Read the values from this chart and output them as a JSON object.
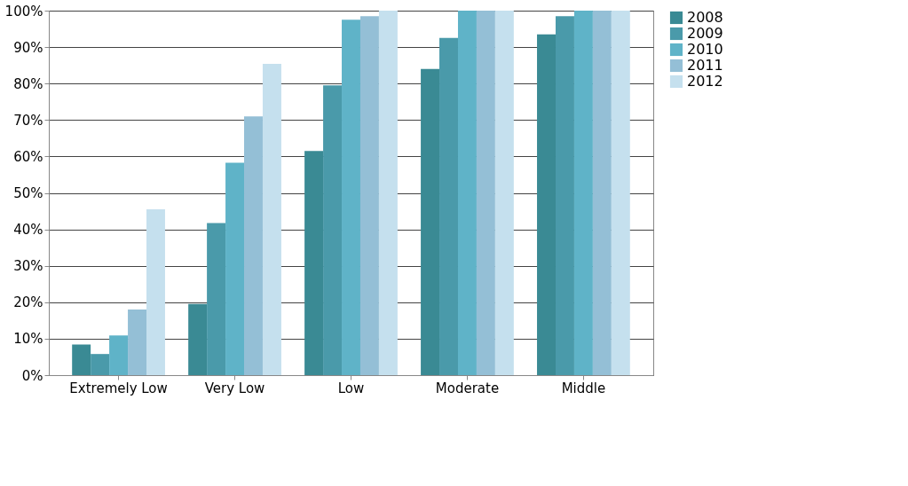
{
  "chart_data": {
    "type": "bar",
    "categories": [
      "Extremely Low",
      "Very Low",
      "Low",
      "Moderate",
      "Middle"
    ],
    "series": [
      {
        "name": "2008",
        "color": "#3a8a94",
        "values": [
          8.4,
          19.5,
          61.5,
          84,
          93.5
        ]
      },
      {
        "name": "2009",
        "color": "#4a9aaa",
        "values": [
          5.8,
          41.7,
          79.5,
          92.5,
          98.5
        ]
      },
      {
        "name": "2010",
        "color": "#5fb3c8",
        "values": [
          10.9,
          58.3,
          97.5,
          100,
          100
        ]
      },
      {
        "name": "2011",
        "color": "#94bfd6",
        "values": [
          18,
          71,
          98.5,
          100,
          100
        ]
      },
      {
        "name": "2012",
        "color": "#c5e0ee",
        "values": [
          45.5,
          85.4,
          100,
          100,
          100
        ]
      }
    ],
    "ylim": [
      0,
      100
    ],
    "yticks": [
      {
        "value": 0,
        "label": "0%"
      },
      {
        "value": 10,
        "label": "10%"
      },
      {
        "value": 20,
        "label": "20%"
      },
      {
        "value": 30,
        "label": "30%"
      },
      {
        "value": 40,
        "label": "40%"
      },
      {
        "value": 50,
        "label": "50%"
      },
      {
        "value": 60,
        "label": "60%"
      },
      {
        "value": 70,
        "label": "70%"
      },
      {
        "value": 80,
        "label": "80%"
      },
      {
        "value": 90,
        "label": "90%"
      },
      {
        "value": 100,
        "label": "100%"
      }
    ],
    "grid": "y",
    "legend": "right"
  }
}
